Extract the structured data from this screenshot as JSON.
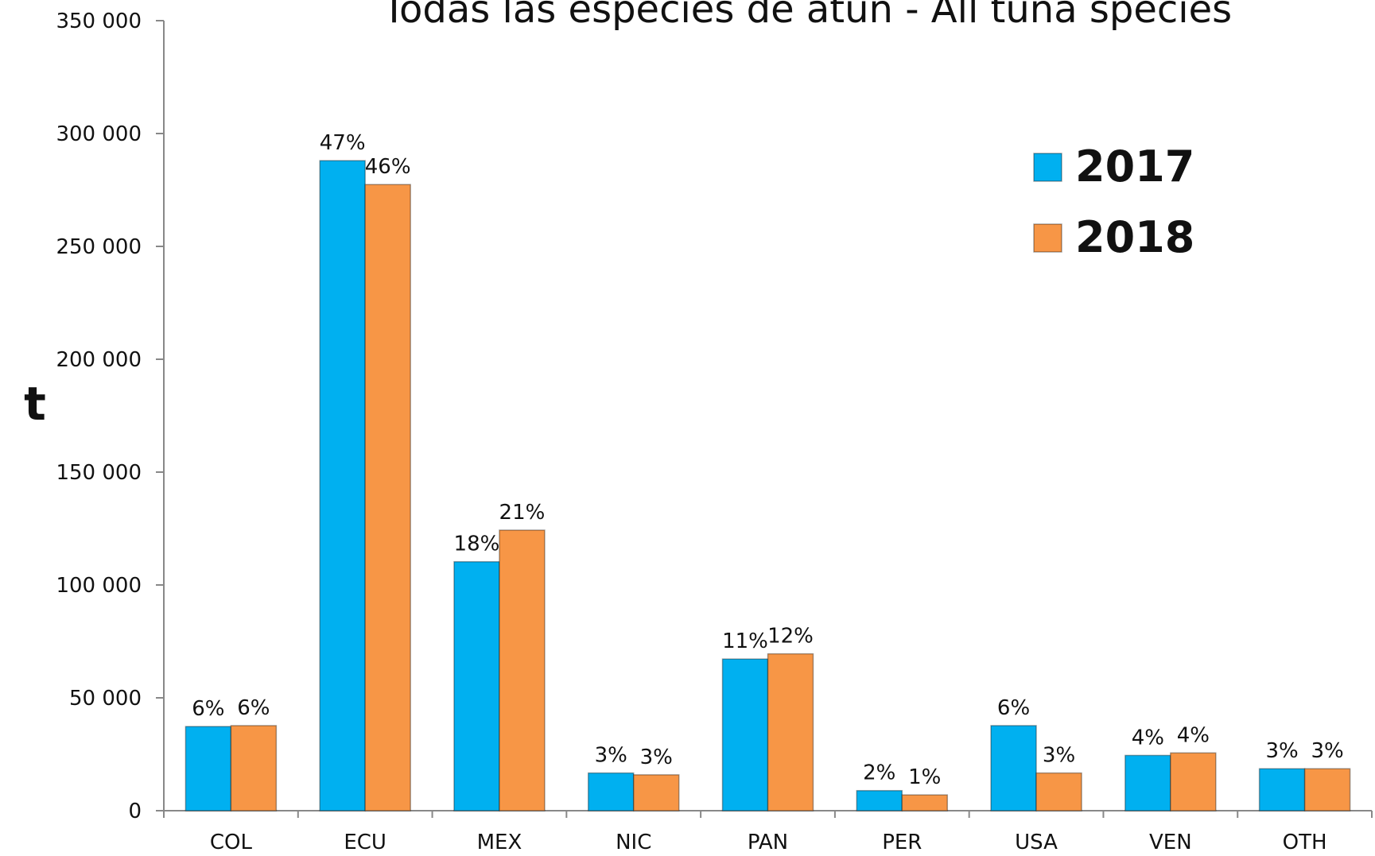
{
  "chart_data": {
    "type": "bar",
    "title": "Todas las especies de atún - All tuna species",
    "y_label": "t",
    "categories": [
      "COL",
      "ECU",
      "MEX",
      "NIC",
      "PAN",
      "PER",
      "USA",
      "VEN",
      "OTH"
    ],
    "series": [
      {
        "name": "2017",
        "color": "#00b0f0",
        "values": [
          37300,
          288000,
          110300,
          16700,
          67200,
          8900,
          37700,
          24500,
          18600
        ],
        "share_labels": [
          "6%",
          "47%",
          "18%",
          "3%",
          "11%",
          "2%",
          "6%",
          "4%",
          "3%"
        ]
      },
      {
        "name": "2018",
        "color": "#f79646",
        "values": [
          37700,
          277400,
          124300,
          15900,
          69500,
          7000,
          16700,
          25600,
          18600
        ],
        "share_labels": [
          "6%",
          "46%",
          "21%",
          "3%",
          "12%",
          "1%",
          "3%",
          "4%",
          "3%"
        ]
      }
    ],
    "ylim": [
      0,
      350000
    ],
    "yticks": [
      {
        "value": 0,
        "label": "0"
      },
      {
        "value": 50000,
        "label": "50 000"
      },
      {
        "value": 100000,
        "label": "100 000"
      },
      {
        "value": 150000,
        "label": "150 000"
      },
      {
        "value": 200000,
        "label": "200 000"
      },
      {
        "value": 250000,
        "label": "250 000"
      },
      {
        "value": 300000,
        "label": "300 000"
      },
      {
        "value": 350000,
        "label": "350 000"
      }
    ],
    "grid": false,
    "legend": "upper right"
  }
}
